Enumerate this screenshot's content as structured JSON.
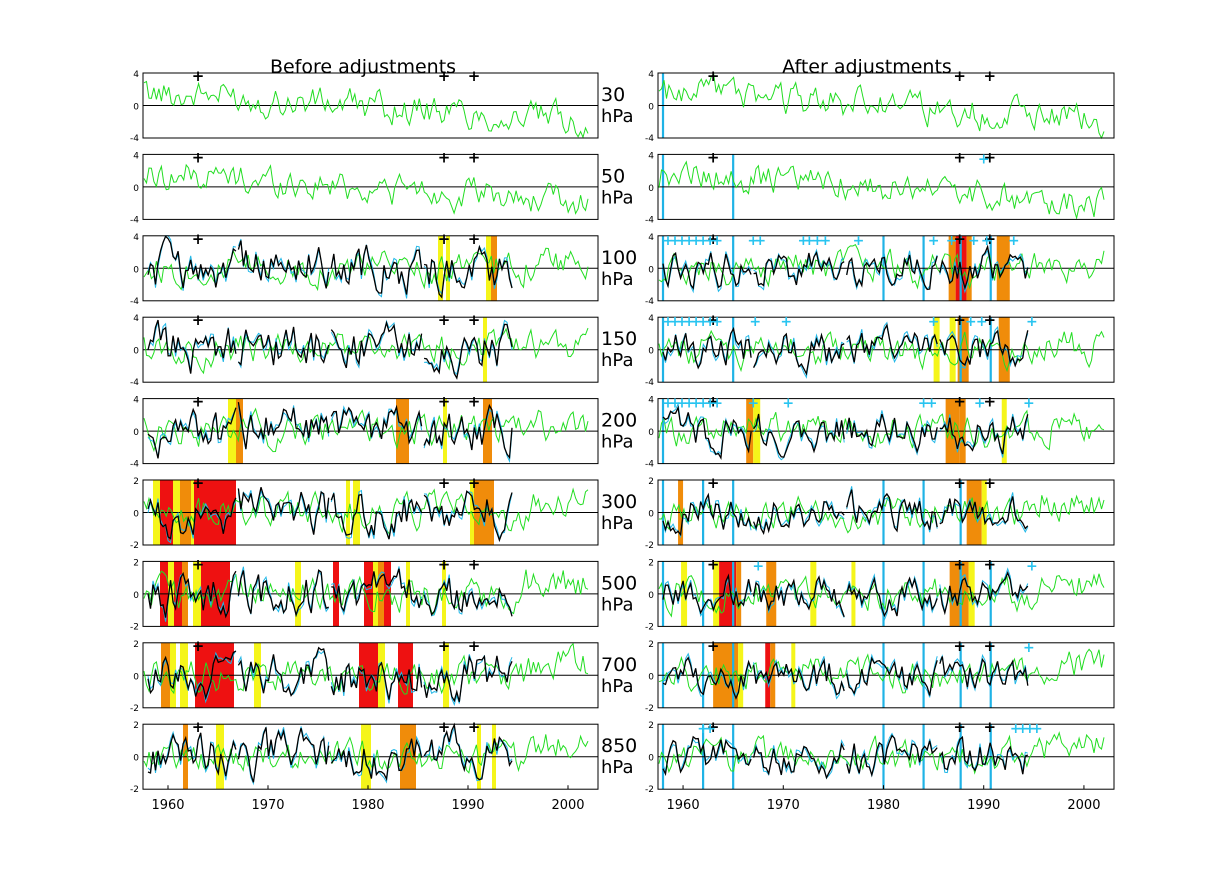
{
  "titles": {
    "left": "Before adjustments",
    "right": "After adjustments"
  },
  "level_unit": "hPa",
  "colors": {
    "green": "#22dd22",
    "cyan": "#22b8e8",
    "black": "#000000",
    "red": "#ee1111",
    "orange": "#f08c0a",
    "yellow": "#f5f51a",
    "breakpoint_line": "#1fb3e6",
    "breakpoint_plus": "#29c4f0"
  },
  "chart_data": {
    "type": "line",
    "xlim": [
      1957.5,
      2003
    ],
    "x_ticks": [
      "1960",
      "1970",
      "1980",
      "1990",
      "2000"
    ],
    "panels": [
      {
        "level": "30",
        "ylim": [
          -4,
          4
        ],
        "y_ticks": [
          "4",
          "0",
          "-4"
        ],
        "raob_from": null,
        "black_markers": [
          "+",
          "+",
          "+"
        ],
        "cyan_markers_right": []
      },
      {
        "level": "50",
        "ylim": [
          -4,
          4
        ],
        "y_ticks": [
          "4",
          "0",
          "-4"
        ],
        "raob_from": null,
        "black_markers": [
          "+",
          "+",
          "+"
        ],
        "cyan_markers_right": [
          "+"
        ]
      },
      {
        "level": "100",
        "ylim": [
          -4,
          4
        ],
        "y_ticks": [
          "4",
          "0",
          "-4"
        ],
        "raob_from": 1958,
        "black_markers": [
          "+",
          "+",
          "+"
        ],
        "cyan_markers_right": [
          "+",
          "+",
          "+",
          "+",
          "+",
          "+",
          "+",
          "+",
          "+",
          "+",
          "+",
          "+",
          "+",
          "+",
          "+",
          "+",
          "+",
          "+",
          "+",
          "+"
        ]
      },
      {
        "level": "150",
        "ylim": [
          -4,
          4
        ],
        "y_ticks": [
          "4",
          "0",
          "-4"
        ],
        "raob_from": 1958,
        "black_markers": [
          "+",
          "+",
          "+"
        ],
        "cyan_markers_right": [
          "+",
          "+",
          "+",
          "+",
          "+",
          "+",
          "+",
          "+",
          "+",
          "+",
          "+",
          "+",
          "+",
          "+"
        ]
      },
      {
        "level": "200",
        "ylim": [
          -4,
          4
        ],
        "y_ticks": [
          "4",
          "0",
          "-4"
        ],
        "raob_from": 1958,
        "black_markers": [
          "+",
          "+",
          "+"
        ],
        "cyan_markers_right": [
          "+",
          "+",
          "+",
          "+",
          "+",
          "+",
          "+",
          "+",
          "+",
          "+",
          "+",
          "+",
          "+",
          "+"
        ]
      },
      {
        "level": "300",
        "ylim": [
          -2,
          2
        ],
        "y_ticks": [
          "2",
          "0",
          "-2"
        ],
        "raob_from": 1958,
        "black_markers": [
          "+",
          "+",
          "+"
        ],
        "cyan_markers_right": []
      },
      {
        "level": "500",
        "ylim": [
          -2,
          2
        ],
        "y_ticks": [
          "2",
          "0",
          "-2"
        ],
        "raob_from": 1958,
        "black_markers": [
          "+",
          "+",
          "+"
        ],
        "cyan_markers_right": [
          "+",
          "+"
        ]
      },
      {
        "level": "700",
        "ylim": [
          -2,
          2
        ],
        "y_ticks": [
          "2",
          "0",
          "-2"
        ],
        "raob_from": 1958,
        "black_markers": [
          "+",
          "+",
          "+"
        ],
        "cyan_markers_right": [
          "+"
        ]
      },
      {
        "level": "850",
        "ylim": [
          -2,
          2
        ],
        "y_ticks": [
          "2",
          "0",
          "-2"
        ],
        "raob_from": 1958,
        "black_markers": [
          "+",
          "+",
          "+"
        ],
        "cyan_markers_right": [
          "+",
          "+",
          "+",
          "+",
          "+",
          "+"
        ]
      }
    ],
    "black_marker_years": [
      1963,
      1987.6,
      1990.6
    ],
    "cyan_marker_years_right": {
      "50": [
        1990
      ],
      "100": [
        1958.5,
        1959.2,
        1959.9,
        1960.6,
        1961.3,
        1962,
        1962.7,
        1963.4,
        1967,
        1967.7,
        1972,
        1972.6,
        1973.4,
        1974.2,
        1977.5,
        1985,
        1986.8,
        1989,
        1990.3,
        1993
      ],
      "150": [
        1958.5,
        1959.2,
        1959.9,
        1960.6,
        1961.3,
        1962,
        1962.7,
        1963.4,
        1967.2,
        1970.3,
        1985,
        1988.7,
        1989.8,
        1994.8
      ],
      "200": [
        1958.5,
        1959.2,
        1959.9,
        1960.6,
        1961.3,
        1962,
        1962.7,
        1963.4,
        1967,
        1970.5,
        1984,
        1984.8,
        1989.6,
        1994.5
      ],
      "500": [
        1967.5,
        1994.8
      ],
      "700": [
        1994.5
      ],
      "850": [
        1962,
        1962.7,
        1993.2,
        1993.9,
        1994.6,
        1995.3
      ]
    },
    "breakpoint_years_right": {
      "30": [
        1958
      ],
      "50": [
        1958,
        1965
      ],
      "100": [
        1958,
        1965,
        1980,
        1984,
        1987.7,
        1990.7
      ],
      "150": [
        1958,
        1965,
        1987.7,
        1990.7
      ],
      "200": [
        1958
      ],
      "300": [
        1958,
        1962,
        1965,
        1980,
        1984,
        1987.7
      ],
      "500": [
        1958,
        1962,
        1965,
        1980,
        1984,
        1987.7,
        1990.7
      ],
      "700": [
        1958,
        1962,
        1965,
        1980,
        1984,
        1987.7,
        1990.7
      ],
      "850": [
        1958,
        1962,
        1965,
        1980,
        1984,
        1987.7,
        1990.7
      ]
    },
    "shaded_periods": {
      "left": {
        "100": [
          [
            1987,
            1987.5,
            "yellow"
          ],
          [
            1987.8,
            1988.2,
            "yellow"
          ],
          [
            1991.8,
            1992.3,
            "yellow"
          ],
          [
            1992.3,
            1992.9,
            "orange"
          ]
        ],
        "150": [
          [
            1991.5,
            1991.9,
            "yellow"
          ]
        ],
        "200": [
          [
            1966,
            1966.8,
            "yellow"
          ],
          [
            1966.8,
            1967.5,
            "orange"
          ],
          [
            1982.8,
            1984.1,
            "orange"
          ],
          [
            1987.5,
            1987.9,
            "yellow"
          ],
          [
            1991.5,
            1992.4,
            "orange"
          ]
        ],
        "300": [
          [
            1958.5,
            1959.2,
            "yellow"
          ],
          [
            1959.2,
            1960.5,
            "red"
          ],
          [
            1960.5,
            1961.2,
            "yellow"
          ],
          [
            1961.2,
            1962.3,
            "orange"
          ],
          [
            1962.3,
            1962.6,
            "yellow"
          ],
          [
            1962.6,
            1966.8,
            "red"
          ],
          [
            1977.8,
            1978.2,
            "yellow"
          ],
          [
            1978.5,
            1979.2,
            "yellow"
          ],
          [
            1990.2,
            1990.6,
            "yellow"
          ],
          [
            1990.6,
            1992.6,
            "orange"
          ]
        ],
        "500": [
          [
            1959.2,
            1960,
            "red"
          ],
          [
            1960,
            1960.6,
            "yellow"
          ],
          [
            1960.6,
            1961.4,
            "red"
          ],
          [
            1961.4,
            1962,
            "orange"
          ],
          [
            1962.5,
            1963.3,
            "yellow"
          ],
          [
            1963.3,
            1966.2,
            "red"
          ],
          [
            1972.7,
            1973.3,
            "yellow"
          ],
          [
            1976.5,
            1977.1,
            "red"
          ],
          [
            1979.6,
            1980.5,
            "red"
          ],
          [
            1980.5,
            1981,
            "yellow"
          ],
          [
            1981,
            1981.6,
            "orange"
          ],
          [
            1981.6,
            1982.3,
            "red"
          ],
          [
            1983.8,
            1984.2,
            "yellow"
          ],
          [
            1987.4,
            1987.8,
            "yellow"
          ]
        ],
        "700": [
          [
            1959.3,
            1960.2,
            "orange"
          ],
          [
            1960.2,
            1960.8,
            "yellow"
          ],
          [
            1961.2,
            1962,
            "yellow"
          ],
          [
            1962.7,
            1966.6,
            "red"
          ],
          [
            1968.6,
            1969.3,
            "yellow"
          ],
          [
            1979.1,
            1981,
            "red"
          ],
          [
            1981,
            1981.7,
            "yellow"
          ],
          [
            1983,
            1984.5,
            "red"
          ],
          [
            1987.5,
            1988.1,
            "yellow"
          ]
        ],
        "850": [
          [
            1961.5,
            1962,
            "orange"
          ],
          [
            1964.8,
            1965.6,
            "yellow"
          ],
          [
            1979.3,
            1980.3,
            "yellow"
          ],
          [
            1983.2,
            1984.8,
            "orange"
          ],
          [
            1990.9,
            1991.3,
            "yellow"
          ],
          [
            1992.4,
            1992.8,
            "yellow"
          ]
        ]
      },
      "right": {
        "100": [
          [
            1986.5,
            1987.2,
            "orange"
          ],
          [
            1987.2,
            1988.3,
            "red"
          ],
          [
            1988.3,
            1988.8,
            "orange"
          ],
          [
            1991.3,
            1992.6,
            "orange"
          ]
        ],
        "150": [
          [
            1985,
            1985.6,
            "yellow"
          ],
          [
            1986.6,
            1987.2,
            "yellow"
          ],
          [
            1987.4,
            1988.5,
            "orange"
          ],
          [
            1991.5,
            1992.6,
            "orange"
          ]
        ],
        "200": [
          [
            1966.3,
            1967,
            "orange"
          ],
          [
            1967,
            1967.7,
            "yellow"
          ],
          [
            1986.2,
            1987.6,
            "orange"
          ],
          [
            1987.6,
            1988.2,
            "orange"
          ],
          [
            1991.8,
            1992.3,
            "yellow"
          ]
        ],
        "300": [
          [
            1959.5,
            1960,
            "orange"
          ],
          [
            1988.3,
            1989.8,
            "orange"
          ],
          [
            1989.8,
            1990.3,
            "yellow"
          ]
        ],
        "500": [
          [
            1959.8,
            1960.4,
            "yellow"
          ],
          [
            1963,
            1963.6,
            "yellow"
          ],
          [
            1963.6,
            1965.3,
            "red"
          ],
          [
            1965.3,
            1965.8,
            "orange"
          ],
          [
            1968.3,
            1969.3,
            "orange"
          ],
          [
            1972.7,
            1973.3,
            "yellow"
          ],
          [
            1976.8,
            1977.2,
            "yellow"
          ],
          [
            1986.6,
            1987.6,
            "orange"
          ],
          [
            1987.6,
            1988.5,
            "orange"
          ],
          [
            1988.5,
            1989.1,
            "yellow"
          ]
        ],
        "700": [
          [
            1963,
            1965.5,
            "orange"
          ],
          [
            1965.5,
            1966,
            "yellow"
          ],
          [
            1968.2,
            1968.7,
            "red"
          ],
          [
            1968.7,
            1969.2,
            "orange"
          ],
          [
            1970.8,
            1971.2,
            "yellow"
          ]
        ],
        "850": []
      }
    },
    "legend": null
  }
}
